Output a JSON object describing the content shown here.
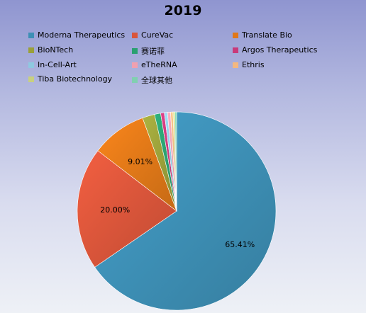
{
  "chart_data": {
    "type": "pie",
    "title": "2019",
    "legend_position": "top",
    "slices": [
      {
        "name": "Moderna Therapeutics",
        "value": 65.41,
        "label": "65.41%",
        "color": "#3d8fb5"
      },
      {
        "name": "CureVac",
        "value": 20.0,
        "label": "20.00%",
        "color": "#d9553a"
      },
      {
        "name": "Translate Bio",
        "value": 9.01,
        "label": "9.01%",
        "color": "#e07818"
      },
      {
        "name": "BioNTech",
        "value": 2.0,
        "label": "",
        "color": "#9aa03a"
      },
      {
        "name": "赛诺菲",
        "value": 1.0,
        "label": "",
        "color": "#2aa070"
      },
      {
        "name": "Argos Therapeutics",
        "value": 0.6,
        "label": "",
        "color": "#c83a7a"
      },
      {
        "name": "In-Cell-Art",
        "value": 0.5,
        "label": "",
        "color": "#8ec8e0"
      },
      {
        "name": "eTheRNA",
        "value": 0.5,
        "label": "",
        "color": "#f0a0b0"
      },
      {
        "name": "Ethris",
        "value": 0.4,
        "label": "",
        "color": "#f3b880"
      },
      {
        "name": "Tiba Biotechnology",
        "value": 0.3,
        "label": "",
        "color": "#c8d080"
      },
      {
        "name": "全球其他",
        "value": 0.28,
        "label": "",
        "color": "#80d0b0"
      }
    ]
  }
}
